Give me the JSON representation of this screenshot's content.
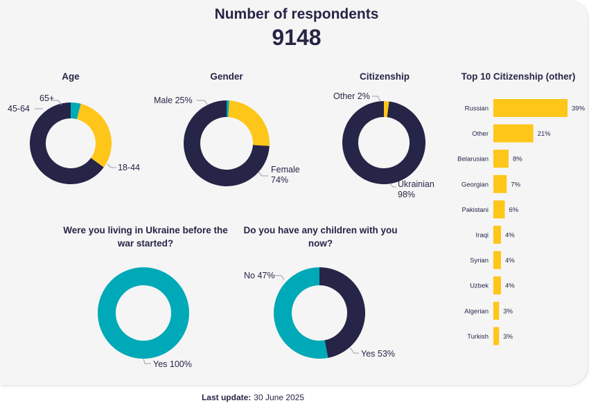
{
  "header": {
    "title": "Number of respondents",
    "count": "9148"
  },
  "colors": {
    "navy": "#262547",
    "yellow": "#ffc61a",
    "teal": "#00a9b8"
  },
  "footer": {
    "label": "Last update:",
    "date": "30 June 2025"
  },
  "chart_data": [
    {
      "type": "pie",
      "title": "Age",
      "slices": [
        {
          "label": "18-44",
          "value": 65,
          "color": "#262547"
        },
        {
          "label": "45-64",
          "value": 31,
          "color": "#ffc61a"
        },
        {
          "label": "65+",
          "value": 4,
          "color": "#00a9b8"
        }
      ]
    },
    {
      "type": "pie",
      "title": "Gender",
      "slices": [
        {
          "label": "Female",
          "pct": "74%",
          "value": 74,
          "color": "#262547"
        },
        {
          "label": "Male",
          "pct": "25%",
          "value": 25,
          "color": "#ffc61a"
        },
        {
          "label": "",
          "value": 1,
          "color": "#00a9b8"
        }
      ]
    },
    {
      "type": "pie",
      "title": "Citizenship",
      "slices": [
        {
          "label": "Ukrainian",
          "pct": "98%",
          "value": 98,
          "color": "#262547"
        },
        {
          "label": "Other",
          "pct": "2%",
          "value": 2,
          "color": "#ffc61a"
        }
      ]
    },
    {
      "type": "bar",
      "title": "Top 10 Citizenship (other)",
      "categories": [
        "Russian",
        "Other",
        "Belarusian",
        "Georgian",
        "Pakistani",
        "Iraqi",
        "Syrian",
        "Uzbek",
        "Algerian",
        "Turkish"
      ],
      "values": [
        39,
        21,
        8,
        7,
        6,
        4,
        4,
        4,
        3,
        3
      ],
      "value_labels": [
        "39%",
        "21%",
        "8%",
        "7%",
        "6%",
        "4%",
        "4%",
        "4%",
        "3%",
        "3%"
      ],
      "color": "#ffc61a"
    },
    {
      "type": "pie",
      "title": "Were you living in Ukraine before the war started?",
      "slices": [
        {
          "label": "Yes",
          "pct": "100%",
          "value": 100,
          "color": "#00a9b8"
        }
      ]
    },
    {
      "type": "pie",
      "title": "Do you have any children with you now?",
      "slices": [
        {
          "label": "Yes",
          "pct": "53%",
          "value": 53,
          "color": "#00a9b8"
        },
        {
          "label": "No",
          "pct": "47%",
          "value": 47,
          "color": "#262547"
        }
      ]
    }
  ]
}
